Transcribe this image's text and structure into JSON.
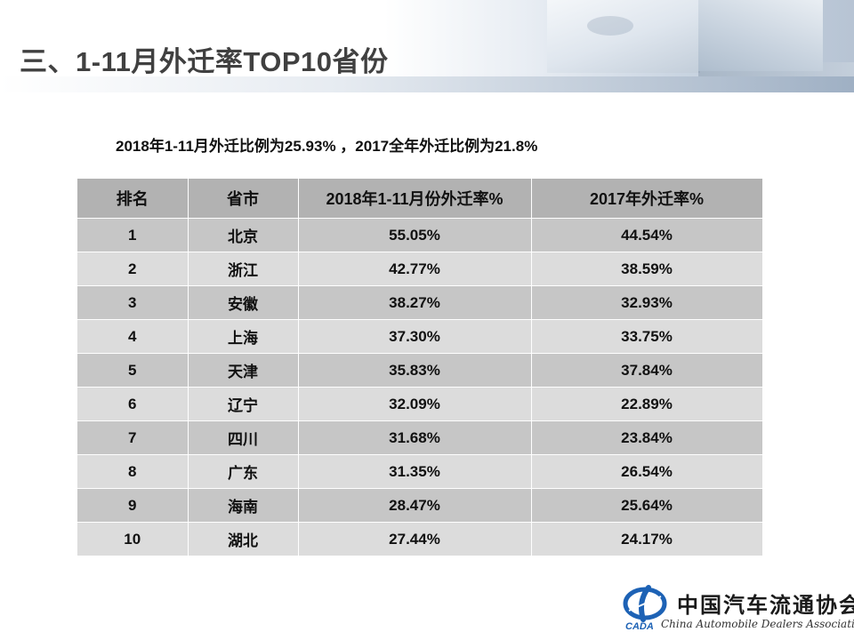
{
  "title": "三、1-11月外迁率TOP10省份",
  "subtitle": "2018年1-11月外迁比例为25.93% ，2017全年外迁比例为21.8%",
  "table": {
    "headers": [
      "排名",
      "省市",
      "2018年1-11月份外迁率%",
      "2017年外迁率%"
    ],
    "rows": [
      [
        "1",
        "北京",
        "55.05%",
        "44.54%"
      ],
      [
        "2",
        "浙江",
        "42.77%",
        "38.59%"
      ],
      [
        "3",
        "安徽",
        "38.27%",
        "32.93%"
      ],
      [
        "4",
        "上海",
        "37.30%",
        "33.75%"
      ],
      [
        "5",
        "天津",
        "35.83%",
        "37.84%"
      ],
      [
        "6",
        "辽宁",
        "32.09%",
        "22.89%"
      ],
      [
        "7",
        "四川",
        "31.68%",
        "23.84%"
      ],
      [
        "8",
        "广东",
        "31.35%",
        "26.54%"
      ],
      [
        "9",
        "海南",
        "28.47%",
        "25.64%"
      ],
      [
        "10",
        "湖北",
        "27.44%",
        "24.17%"
      ]
    ]
  },
  "logo": {
    "abbr": "CADA",
    "name_cn": "中国汽车流通协会",
    "name_en": "China Automobile Dealers Association"
  },
  "colors": {
    "title_text": "#404040",
    "header_row": "#b2b2b2",
    "row_odd": "#c6c6c6",
    "row_even": "#dcdcdc",
    "logo_blue": "#1d62b5"
  }
}
